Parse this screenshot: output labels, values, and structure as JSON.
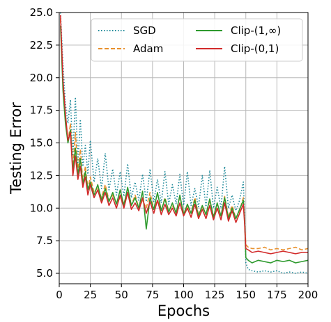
{
  "chart_data": {
    "type": "line",
    "xlabel": "Epochs",
    "ylabel": "Testing Error",
    "xlim": [
      0,
      200
    ],
    "ylim": [
      4.2,
      25.0
    ],
    "x_ticks": [
      0,
      25,
      50,
      75,
      100,
      125,
      150,
      175,
      200
    ],
    "y_ticks": [
      5.0,
      7.5,
      10.0,
      12.5,
      15.0,
      17.5,
      20.0,
      22.5,
      25.0
    ],
    "x_tick_labels": [
      "0",
      "25",
      "50",
      "75",
      "100",
      "125",
      "150",
      "175",
      "200"
    ],
    "y_tick_labels": [
      "5.0",
      "7.5",
      "10.0",
      "12.5",
      "15.0",
      "17.5",
      "20.0",
      "22.5",
      "25.0"
    ],
    "grid": true,
    "legend_position": "top-right",
    "legend_columns": 2,
    "series": [
      {
        "name": "SGD",
        "color": "#1f8a9a",
        "dash": "dotted",
        "x": [
          1,
          3,
          5,
          7,
          9,
          11,
          13,
          15,
          17,
          19,
          21,
          23,
          25,
          28,
          31,
          34,
          37,
          40,
          43,
          46,
          49,
          52,
          55,
          58,
          61,
          64,
          67,
          70,
          73,
          76,
          79,
          82,
          85,
          88,
          91,
          94,
          97,
          100,
          103,
          106,
          109,
          112,
          115,
          118,
          121,
          124,
          127,
          130,
          133,
          136,
          139,
          142,
          145,
          148,
          149,
          150,
          152,
          155,
          160,
          165,
          170,
          175,
          180,
          185,
          190,
          195,
          200
        ],
        "y": [
          25.0,
          21.0,
          18.0,
          16.5,
          18.3,
          14.0,
          18.5,
          13.5,
          16.8,
          13.2,
          14.8,
          12.6,
          15.2,
          12.0,
          13.8,
          11.5,
          14.2,
          11.4,
          13.0,
          11.0,
          12.8,
          10.9,
          13.4,
          10.8,
          12.0,
          10.6,
          12.6,
          10.5,
          13.0,
          10.5,
          12.2,
          10.4,
          12.8,
          10.3,
          11.8,
          10.3,
          12.6,
          10.2,
          12.8,
          10.2,
          11.5,
          10.1,
          12.5,
          10.1,
          12.9,
          10.0,
          11.6,
          10.0,
          13.2,
          10.0,
          11.0,
          9.8,
          10.6,
          12.0,
          9.5,
          5.8,
          5.3,
          5.2,
          5.1,
          5.2,
          5.1,
          5.2,
          5.0,
          5.1,
          5.0,
          5.1,
          5.0
        ]
      },
      {
        "name": "Adam",
        "color": "#e8902c",
        "dash": "dashed",
        "x": [
          1,
          3,
          5,
          7,
          9,
          11,
          13,
          15,
          17,
          19,
          21,
          23,
          25,
          28,
          31,
          34,
          37,
          40,
          43,
          46,
          49,
          52,
          55,
          58,
          61,
          64,
          67,
          70,
          73,
          76,
          79,
          82,
          85,
          88,
          91,
          94,
          97,
          100,
          103,
          106,
          109,
          112,
          115,
          118,
          121,
          124,
          127,
          130,
          133,
          136,
          139,
          142,
          145,
          148,
          149,
          150,
          152,
          155,
          160,
          165,
          170,
          175,
          180,
          185,
          190,
          195,
          200
        ],
        "y": [
          24.5,
          19.5,
          17.0,
          15.0,
          16.5,
          13.0,
          15.8,
          12.8,
          14.5,
          12.0,
          13.2,
          11.5,
          12.4,
          11.2,
          11.6,
          10.8,
          11.8,
          10.6,
          11.0,
          10.4,
          10.8,
          10.3,
          11.5,
          10.2,
          11.0,
          10.0,
          10.6,
          10.0,
          11.2,
          9.9,
          10.6,
          9.8,
          10.8,
          9.8,
          10.2,
          9.7,
          10.9,
          9.6,
          10.2,
          9.6,
          10.8,
          9.5,
          10.1,
          9.5,
          10.6,
          9.4,
          10.3,
          9.4,
          10.9,
          9.3,
          10.2,
          9.2,
          9.8,
          10.8,
          9.0,
          7.2,
          7.0,
          6.9,
          6.9,
          7.0,
          6.8,
          6.9,
          6.8,
          6.9,
          7.0,
          6.8,
          6.9
        ]
      },
      {
        "name": "Clip-(1,∞)",
        "color": "#2e9a2e",
        "dash": "solid",
        "x": [
          1,
          3,
          5,
          7,
          9,
          11,
          13,
          15,
          17,
          19,
          21,
          23,
          25,
          28,
          31,
          34,
          37,
          40,
          43,
          46,
          49,
          52,
          55,
          58,
          61,
          64,
          67,
          70,
          73,
          76,
          79,
          82,
          85,
          88,
          91,
          94,
          97,
          100,
          103,
          106,
          109,
          112,
          115,
          118,
          121,
          124,
          127,
          130,
          133,
          136,
          139,
          142,
          145,
          148,
          149,
          150,
          152,
          155,
          160,
          165,
          170,
          175,
          180,
          185,
          190,
          195,
          200
        ],
        "y": [
          24.0,
          19.0,
          16.5,
          15.0,
          16.0,
          12.8,
          14.6,
          12.5,
          13.8,
          11.8,
          12.8,
          11.4,
          12.0,
          11.0,
          11.8,
          10.6,
          11.5,
          10.5,
          11.2,
          10.3,
          11.4,
          10.2,
          11.6,
          10.2,
          10.8,
          10.0,
          11.3,
          8.4,
          10.8,
          9.9,
          11.2,
          9.8,
          10.7,
          9.7,
          10.4,
          9.6,
          11.0,
          9.5,
          10.3,
          9.6,
          10.6,
          9.4,
          10.2,
          9.5,
          10.7,
          9.3,
          10.4,
          9.4,
          10.8,
          9.2,
          10.0,
          9.2,
          9.9,
          10.6,
          9.1,
          6.2,
          6.0,
          5.8,
          6.0,
          5.9,
          5.8,
          6.0,
          5.9,
          6.0,
          5.8,
          5.9,
          6.0
        ]
      },
      {
        "name": "Clip-(0,1)",
        "color": "#d22a2a",
        "dash": "solid",
        "x": [
          1,
          3,
          5,
          7,
          9,
          11,
          13,
          15,
          17,
          19,
          21,
          23,
          25,
          28,
          31,
          34,
          37,
          40,
          43,
          46,
          49,
          52,
          55,
          58,
          61,
          64,
          67,
          70,
          73,
          76,
          79,
          82,
          85,
          88,
          91,
          94,
          97,
          100,
          103,
          106,
          109,
          112,
          115,
          118,
          121,
          124,
          127,
          130,
          133,
          136,
          139,
          142,
          145,
          148,
          149,
          150,
          152,
          155,
          160,
          165,
          170,
          175,
          180,
          185,
          190,
          195,
          200
        ],
        "y": [
          24.8,
          19.8,
          17.2,
          15.2,
          15.8,
          12.5,
          14.0,
          12.2,
          13.2,
          11.6,
          12.4,
          11.0,
          11.8,
          10.8,
          11.4,
          10.4,
          11.2,
          10.2,
          10.8,
          10.0,
          11.0,
          10.0,
          11.2,
          9.9,
          10.4,
          9.8,
          10.8,
          9.6,
          10.5,
          9.6,
          10.6,
          9.5,
          10.3,
          9.5,
          10.0,
          9.4,
          10.4,
          9.4,
          10.0,
          9.3,
          10.3,
          9.2,
          9.9,
          9.2,
          10.2,
          9.1,
          10.0,
          9.1,
          10.4,
          9.0,
          9.8,
          8.9,
          9.6,
          10.3,
          8.8,
          6.9,
          6.8,
          6.6,
          6.7,
          6.6,
          6.5,
          6.6,
          6.7,
          6.6,
          6.5,
          6.6,
          6.6
        ]
      }
    ]
  }
}
